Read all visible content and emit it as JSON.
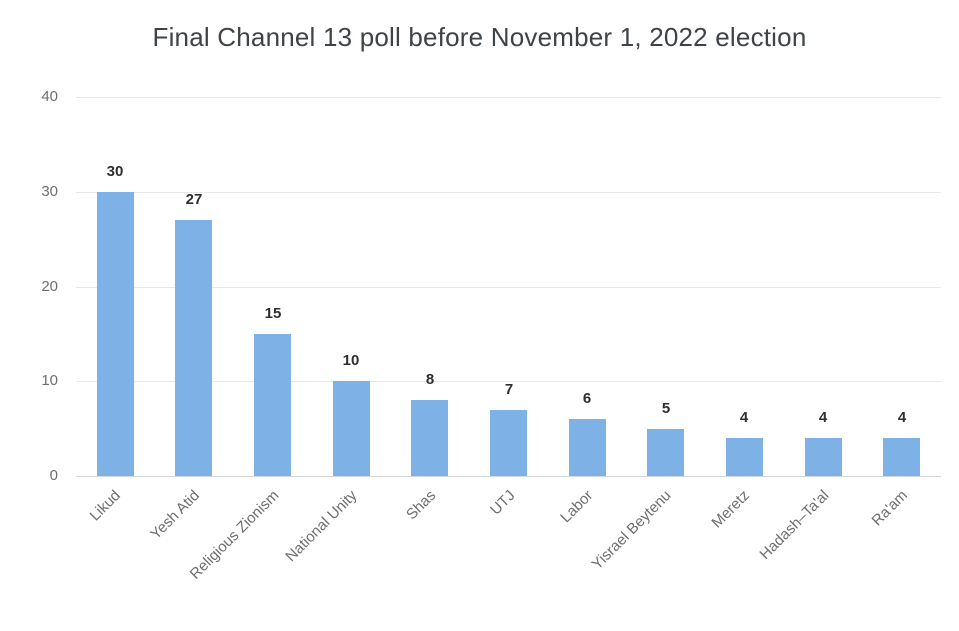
{
  "chart_data": {
    "type": "bar",
    "title": "Final Channel 13 poll before November 1, 2022 election",
    "categories": [
      "Likud",
      "Yesh Atid",
      "Religious Zionism",
      "National Unity",
      "Shas",
      "UTJ",
      "Labor",
      "Yisrael Beytenu",
      "Meretz",
      "Hadash–Ta'al",
      "Ra'am"
    ],
    "values": [
      30,
      27,
      15,
      10,
      8,
      7,
      6,
      5,
      4,
      4,
      4
    ],
    "xlabel": "",
    "ylabel": "",
    "ylim": [
      0,
      40
    ],
    "yticks": [
      0,
      10,
      20,
      30,
      40
    ],
    "grid": "horizontal",
    "legend": "none",
    "bar_color": "#7EB2E6",
    "x_label_rotation_deg": -45
  }
}
